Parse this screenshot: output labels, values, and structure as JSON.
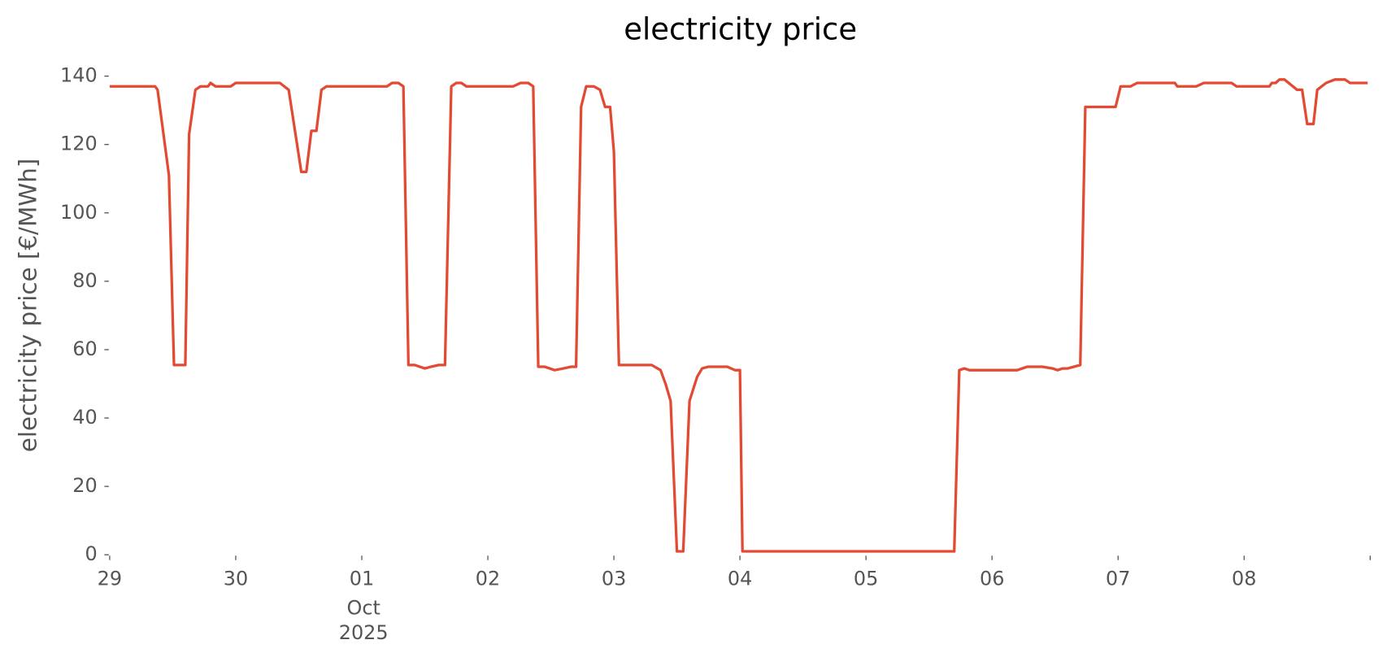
{
  "chart_data": {
    "type": "line",
    "title": "electricity price",
    "ylabel": "electricity price [€/MWh]",
    "x_month_label": "Oct",
    "x_year_label": "2025",
    "xlim": [
      0,
      10
    ],
    "xticks": [
      {
        "value": 0,
        "label": "29"
      },
      {
        "value": 1,
        "label": "30"
      },
      {
        "value": 2,
        "label": "01"
      },
      {
        "value": 3,
        "label": "02"
      },
      {
        "value": 4,
        "label": "03"
      },
      {
        "value": 5,
        "label": "04"
      },
      {
        "value": 6,
        "label": "05"
      },
      {
        "value": 7,
        "label": "06"
      },
      {
        "value": 8,
        "label": "07"
      },
      {
        "value": 9,
        "label": "08"
      },
      {
        "value": 10,
        "label": null
      }
    ],
    "ylim": [
      0,
      140
    ],
    "yticks": [
      0,
      20,
      40,
      60,
      80,
      100,
      120,
      140
    ],
    "grid": false,
    "series": [
      {
        "name": "electricity price",
        "color": "#e24a33",
        "x": [
          0,
          0.36,
          0.38,
          0.47,
          0.51,
          0.6,
          0.63,
          0.68,
          0.72,
          0.78,
          0.8,
          0.84,
          0.96,
          1.0,
          1.35,
          1.42,
          1.52,
          1.56,
          1.6,
          1.64,
          1.68,
          1.72,
          2.2,
          2.24,
          2.29,
          2.33,
          2.37,
          2.42,
          2.5,
          2.55,
          2.61,
          2.66,
          2.71,
          2.75,
          2.79,
          2.83,
          3.2,
          3.26,
          3.32,
          3.36,
          3.4,
          3.45,
          3.53,
          3.6,
          3.66,
          3.7,
          3.74,
          3.78,
          3.84,
          3.89,
          3.93,
          3.97,
          4.0,
          4.04,
          4.3,
          4.37,
          4.41,
          4.45,
          4.5,
          4.55,
          4.6,
          4.66,
          4.7,
          4.75,
          4.9,
          4.96,
          5.0,
          5.02,
          5.5,
          6.0,
          6.5,
          6.7,
          6.74,
          6.78,
          6.82,
          7.2,
          7.28,
          7.4,
          7.48,
          7.52,
          7.56,
          7.6,
          7.7,
          7.74,
          7.98,
          8.02,
          8.1,
          8.15,
          8.45,
          8.47,
          8.62,
          8.68,
          8.9,
          8.94,
          9.2,
          9.22,
          9.25,
          9.28,
          9.32,
          9.42,
          9.46,
          9.5,
          9.55,
          9.58,
          9.65,
          9.72,
          9.8,
          9.84,
          9.98
        ],
        "values": [
          137,
          137,
          136,
          111,
          55.5,
          55.5,
          123,
          136,
          137,
          137,
          138,
          137,
          137,
          138,
          138,
          136,
          112,
          112,
          124,
          124,
          136,
          137,
          137,
          138,
          138,
          137,
          55.5,
          55.5,
          54.5,
          55,
          55.5,
          55.5,
          137,
          138,
          138,
          137,
          137,
          138,
          138,
          137,
          55,
          55,
          54,
          54.5,
          55,
          55,
          131,
          137,
          137,
          136,
          131,
          131,
          118,
          55.5,
          55.5,
          54,
          50,
          45,
          1,
          1,
          45,
          52,
          54.5,
          55,
          55,
          54,
          54,
          1,
          1,
          1,
          1,
          1,
          54,
          54.5,
          54,
          54,
          55,
          55,
          54.5,
          54,
          54.5,
          54.5,
          55.5,
          131,
          131,
          137,
          137,
          138,
          138,
          137,
          137,
          138,
          138,
          137,
          137,
          138,
          138,
          139,
          139,
          136,
          136,
          126,
          126,
          136,
          138,
          139,
          139,
          138,
          138
        ]
      }
    ]
  }
}
